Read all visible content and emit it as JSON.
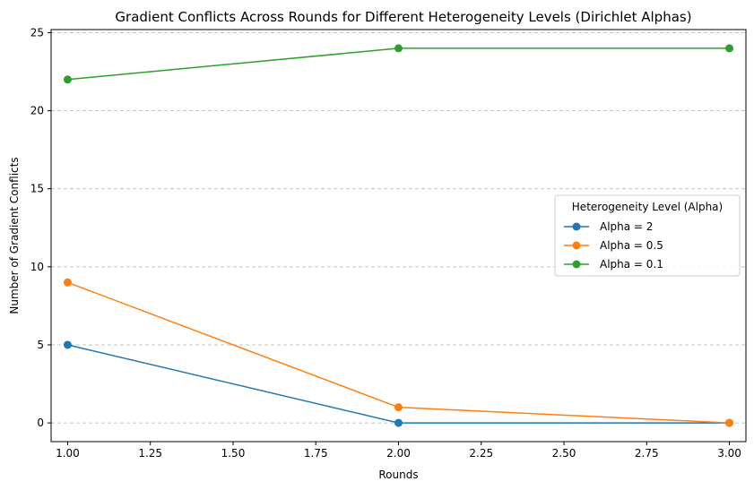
{
  "chart_data": {
    "type": "line",
    "title": "Gradient Conflicts Across Rounds for Different Heterogeneity Levels (Dirichlet Alphas)",
    "xlabel": "Rounds",
    "ylabel": "Number of Gradient Conflicts",
    "x": [
      1.0,
      2.0,
      3.0
    ],
    "xlim": [
      0.95,
      3.05
    ],
    "ylim": [
      -1.2,
      25.2
    ],
    "xticks": [
      1.0,
      1.25,
      1.5,
      1.75,
      2.0,
      2.25,
      2.5,
      2.75,
      3.0
    ],
    "xtick_labels": [
      "1.00",
      "1.25",
      "1.50",
      "1.75",
      "2.00",
      "2.25",
      "2.50",
      "2.75",
      "3.00"
    ],
    "yticks": [
      0,
      5,
      10,
      15,
      20,
      25
    ],
    "ytick_labels": [
      "0",
      "5",
      "10",
      "15",
      "20",
      "25"
    ],
    "grid": "y-dashed",
    "legend": {
      "title": "Heterogeneity Level (Alpha)",
      "placement": "center-right"
    },
    "series": [
      {
        "name": "Alpha = 2",
        "color": "#1f77b4",
        "values": [
          5,
          0,
          0
        ]
      },
      {
        "name": "Alpha = 0.5",
        "color": "#ff7f0e",
        "values": [
          9,
          1,
          0
        ]
      },
      {
        "name": "Alpha = 0.1",
        "color": "#2ca02c",
        "values": [
          22,
          24,
          24
        ]
      }
    ]
  }
}
